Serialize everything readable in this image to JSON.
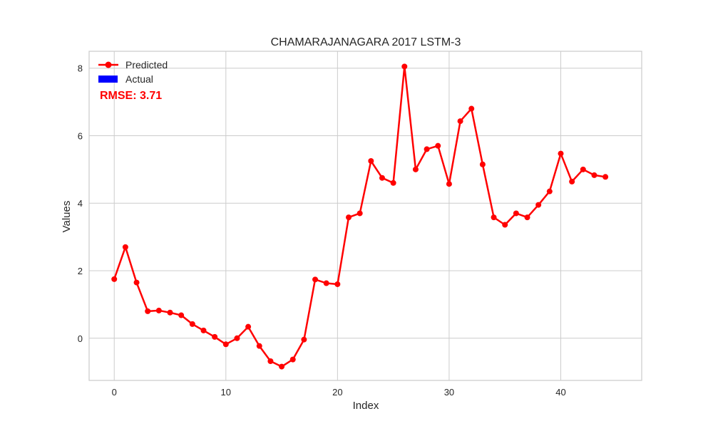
{
  "chart_data": {
    "type": "line",
    "title": "CHAMARAJANAGARA 2017 LSTM-3",
    "xlabel": "Index",
    "ylabel": "Values",
    "xlim": [
      -2.25,
      47.25
    ],
    "ylim": [
      -1.25,
      8.5
    ],
    "x_ticks": [
      0,
      10,
      20,
      30,
      40
    ],
    "y_ticks": [
      0,
      2,
      4,
      6,
      8
    ],
    "grid": true,
    "legend_position": "top-left",
    "legend": [
      {
        "label": "Predicted",
        "color": "#ff0000",
        "marker": "line-dot"
      },
      {
        "label": "Actual",
        "color": "#0000ff",
        "marker": "patch"
      }
    ],
    "annotation": {
      "text": "RMSE: 3.71",
      "color": "#ff0000"
    },
    "series": [
      {
        "name": "Predicted",
        "color": "#ff0000",
        "x": [
          0,
          1,
          2,
          3,
          4,
          5,
          6,
          7,
          8,
          9,
          10,
          11,
          12,
          13,
          14,
          15,
          16,
          17,
          18,
          19,
          20,
          21,
          22,
          23,
          24,
          25,
          26,
          27,
          28,
          29,
          30,
          31,
          32,
          33,
          34,
          35,
          36,
          37,
          38,
          39,
          40,
          41,
          42,
          43,
          44
        ],
        "values": [
          1.75,
          2.7,
          1.65,
          0.8,
          0.82,
          0.76,
          0.68,
          0.42,
          0.23,
          0.04,
          -0.18,
          0.0,
          0.34,
          -0.23,
          -0.68,
          -0.84,
          -0.63,
          -0.04,
          1.74,
          1.63,
          1.6,
          3.58,
          3.7,
          5.25,
          4.75,
          4.6,
          8.05,
          5.0,
          5.6,
          5.7,
          4.57,
          6.43,
          6.8,
          5.15,
          3.58,
          3.36,
          3.7,
          3.58,
          3.95,
          4.35,
          5.47,
          4.64,
          5.0,
          4.83,
          4.78
        ]
      }
    ]
  }
}
